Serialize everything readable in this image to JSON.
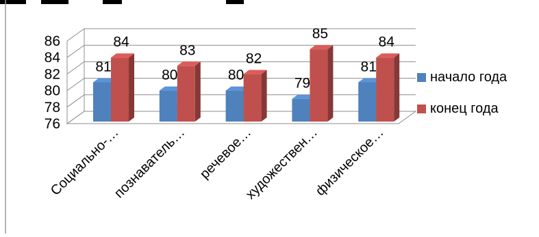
{
  "chart_data": {
    "type": "bar",
    "categories": [
      "Социально-…",
      "познаватель…",
      "речевое…",
      "художествен…",
      "физическое…"
    ],
    "series": [
      {
        "name": "начало года",
        "values": [
          81,
          80,
          80,
          79,
          81
        ],
        "color": "#4F81BD"
      },
      {
        "name": "конец года",
        "values": [
          84,
          83,
          82,
          85,
          84
        ],
        "color": "#C0504D"
      }
    ],
    "yticks": [
      "76",
      "78",
      "80",
      "82",
      "84",
      "86"
    ],
    "ylim": [
      76,
      86
    ],
    "data_labels": true,
    "grid": true,
    "legend_position": "right",
    "style": "3d-clustered-column"
  }
}
